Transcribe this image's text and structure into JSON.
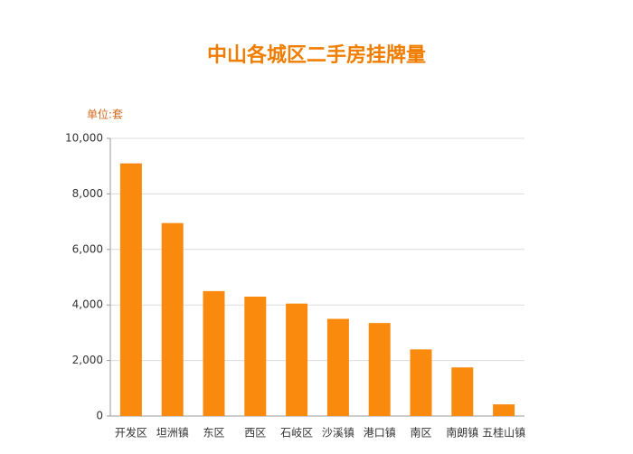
{
  "chart_data": {
    "type": "bar",
    "title": "中山各城区二手房挂牌量",
    "y_axis_label": "单位:套",
    "categories": [
      "开发区",
      "坦洲镇",
      "东区",
      "西区",
      "石岐区",
      "沙溪镇",
      "港口镇",
      "南区",
      "南朗镇",
      "五桂山镇"
    ],
    "values": [
      9100,
      6950,
      4500,
      4300,
      4050,
      3500,
      3350,
      2400,
      1750,
      420
    ],
    "color": "#f98a0e",
    "ylim": [
      0,
      10000
    ],
    "yticks": [
      0,
      {
        "value": 2000,
        "label": "2,000"
      },
      {
        "value": 4000,
        "label": "4,000"
      },
      {
        "value": 6000,
        "label": "6,000"
      },
      {
        "value": 8000,
        "label": "8,000"
      },
      {
        "value": 10000,
        "label": "10,000"
      }
    ],
    "grid": true
  }
}
